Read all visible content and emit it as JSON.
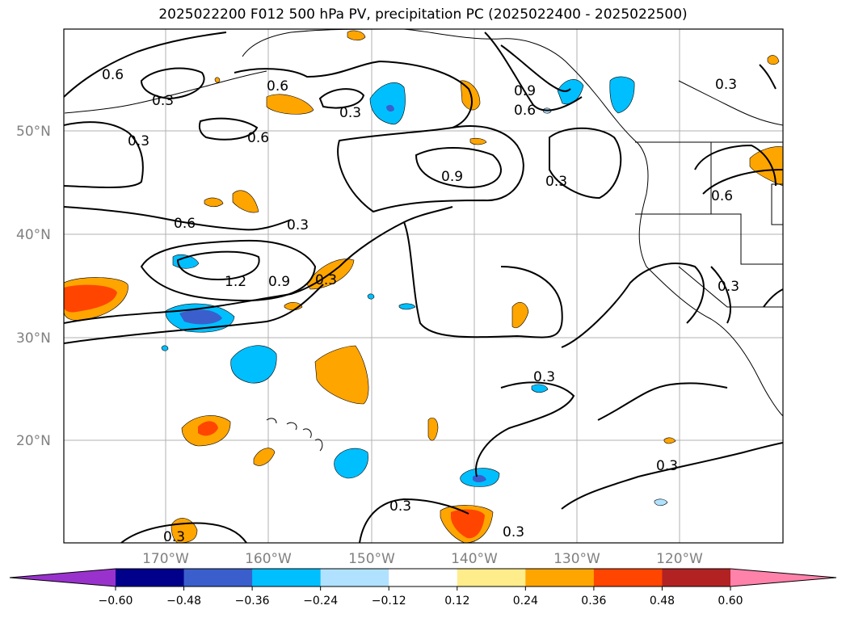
{
  "title": "2025022200 F012 500 hPa PV, precipitation PC (2025022400 - 2025022500)",
  "lat_labels": [
    "50°N",
    "40°N",
    "30°N",
    "20°N"
  ],
  "lon_labels": [
    "170°W",
    "160°W",
    "150°W",
    "140°W",
    "130°W",
    "120°W"
  ],
  "contour_labels": [
    "0.6",
    "0.3",
    "0.6",
    "0.3",
    "0.3",
    "0.6",
    "0.9",
    "0.6",
    "0.3",
    "0.9",
    "0.3",
    "0.6",
    "0.3",
    "0.3",
    "0.6",
    "1.2",
    "0.9",
    "0.3",
    "0.3",
    "0.3",
    "0.3",
    "0.3",
    "0.3"
  ],
  "colorbar": {
    "ticks": [
      "−0.60",
      "−0.48",
      "−0.36",
      "−0.24",
      "−0.12",
      "0.12",
      "0.24",
      "0.36",
      "0.48",
      "0.60"
    ],
    "colors": [
      "#9932cc",
      "#00008b",
      "#3a5fcd",
      "#00bfff",
      "#b0e2ff",
      "#ffffff",
      "#ffec8b",
      "#ffa500",
      "#ff4500",
      "#b22222",
      "#ff82ab"
    ]
  },
  "colors": {
    "ocean": "#ffffff",
    "contour": "#000000",
    "grid": "#b0b0b0"
  }
}
